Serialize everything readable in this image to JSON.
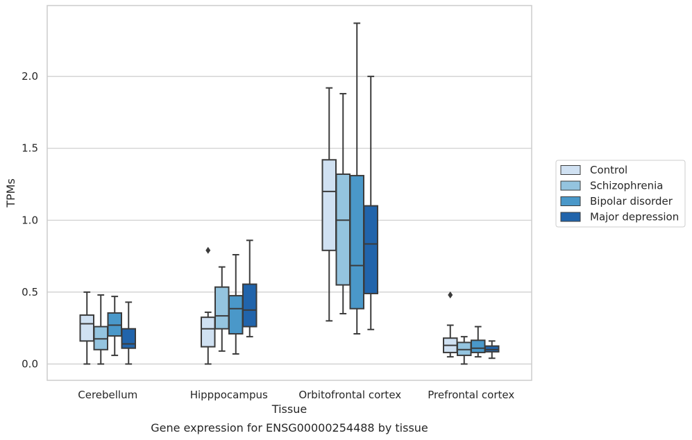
{
  "chart_data": {
    "type": "box",
    "caption": "Gene expression for ENSG00000254488 by tissue",
    "xlabel": "Tissue",
    "ylabel": "TPMs",
    "ylim": [
      -0.11,
      2.48
    ],
    "yticks": [
      0.0,
      0.5,
      1.0,
      1.5,
      2.0
    ],
    "ytick_labels": [
      "0.0",
      "0.5",
      "1.0",
      "1.5",
      "2.0"
    ],
    "grid": "horizontal",
    "legend_position": "right",
    "categories": [
      "Cerebellum",
      "Hipppocampus",
      "Orbitofrontal cortex",
      "Prefrontal cortex"
    ],
    "series": [
      {
        "name": "Control",
        "color": "#d0e1f2",
        "boxes": [
          {
            "whislo": 0.0,
            "q1": 0.16,
            "med": 0.28,
            "q3": 0.34,
            "whishi": 0.5,
            "fliers": []
          },
          {
            "whislo": 0.0,
            "q1": 0.12,
            "med": 0.245,
            "q3": 0.325,
            "whishi": 0.36,
            "fliers": [
              0.79
            ]
          },
          {
            "whislo": 0.3,
            "q1": 0.79,
            "med": 1.2,
            "q3": 1.42,
            "whishi": 1.92,
            "fliers": []
          },
          {
            "whislo": 0.05,
            "q1": 0.08,
            "med": 0.13,
            "q3": 0.18,
            "whishi": 0.27,
            "fliers": [
              0.48
            ]
          }
        ]
      },
      {
        "name": "Schizophrenia",
        "color": "#94c4df",
        "boxes": [
          {
            "whislo": 0.0,
            "q1": 0.1,
            "med": 0.175,
            "q3": 0.26,
            "whishi": 0.48,
            "fliers": []
          },
          {
            "whislo": 0.09,
            "q1": 0.245,
            "med": 0.335,
            "q3": 0.535,
            "whishi": 0.675,
            "fliers": []
          },
          {
            "whislo": 0.35,
            "q1": 0.55,
            "med": 1.0,
            "q3": 1.32,
            "whishi": 1.88,
            "fliers": []
          },
          {
            "whislo": 0.0,
            "q1": 0.06,
            "med": 0.1,
            "q3": 0.15,
            "whishi": 0.19,
            "fliers": []
          }
        ]
      },
      {
        "name": "Bipolar disorder",
        "color": "#4a98c9",
        "boxes": [
          {
            "whislo": 0.06,
            "q1": 0.195,
            "med": 0.27,
            "q3": 0.355,
            "whishi": 0.47,
            "fliers": []
          },
          {
            "whislo": 0.07,
            "q1": 0.21,
            "med": 0.385,
            "q3": 0.475,
            "whishi": 0.76,
            "fliers": []
          },
          {
            "whislo": 0.21,
            "q1": 0.385,
            "med": 0.685,
            "q3": 1.31,
            "whishi": 2.37,
            "fliers": []
          },
          {
            "whislo": 0.05,
            "q1": 0.08,
            "med": 0.11,
            "q3": 0.165,
            "whishi": 0.26,
            "fliers": []
          }
        ]
      },
      {
        "name": "Major depression",
        "color": "#2164ab",
        "boxes": [
          {
            "whislo": 0.0,
            "q1": 0.11,
            "med": 0.14,
            "q3": 0.245,
            "whishi": 0.43,
            "fliers": []
          },
          {
            "whislo": 0.19,
            "q1": 0.26,
            "med": 0.375,
            "q3": 0.555,
            "whishi": 0.86,
            "fliers": []
          },
          {
            "whislo": 0.24,
            "q1": 0.49,
            "med": 0.835,
            "q3": 1.1,
            "whishi": 2.0,
            "fliers": []
          },
          {
            "whislo": 0.04,
            "q1": 0.085,
            "med": 0.1,
            "q3": 0.125,
            "whishi": 0.16,
            "fliers": []
          }
        ]
      }
    ]
  }
}
